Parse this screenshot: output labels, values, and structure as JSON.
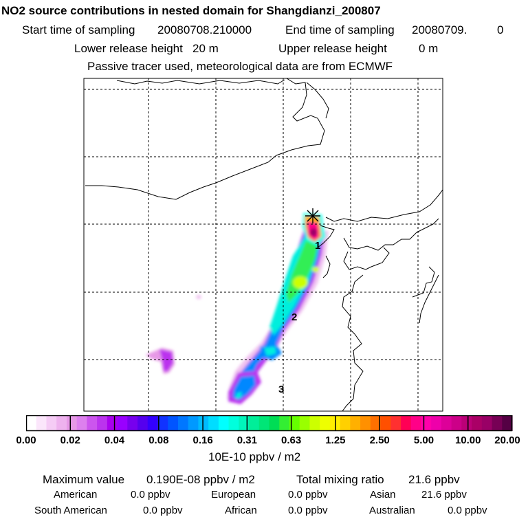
{
  "header": {
    "title": "NO2 source contributions in nested domain for Shangdianzi_200807",
    "start_label": "Start time of sampling",
    "start_value": "20080708.210000",
    "end_label": "End time of sampling",
    "end_value": "20080709.",
    "end_extra": "0",
    "lower_label": "Lower release height",
    "lower_value": "20 m",
    "upper_label": "Upper release height",
    "upper_value": "0 m",
    "note": "Passive tracer used, meteorological data are from ECMWF"
  },
  "map": {
    "region_labels": [
      "1",
      "2",
      "3"
    ],
    "receptor_marker": "star-marker"
  },
  "colorbar": {
    "ticks": [
      "0.00",
      "0.02",
      "0.04",
      "0.08",
      "0.16",
      "0.31",
      "0.63",
      "1.25",
      "2.50",
      "5.00",
      "10.00",
      "20.00"
    ],
    "unit": "10E-10 ppbv / m2",
    "colors": [
      "#ffffff",
      "#fbe6fb",
      "#f5ccf5",
      "#eeb2ee",
      "#e699e6",
      "#dd80ee",
      "#cc55ee",
      "#bb33ee",
      "#a900ee",
      "#9900ff",
      "#7700ee",
      "#5500ee",
      "#3300ff",
      "#1133ff",
      "#0055ff",
      "#0077ff",
      "#0099ff",
      "#00bbff",
      "#00ddff",
      "#00ffff",
      "#00ffdd",
      "#00f5bb",
      "#00ee99",
      "#00e677",
      "#00dd55",
      "#33ee33",
      "#66ff00",
      "#99ff00",
      "#ccff00",
      "#eeff00",
      "#ffee00",
      "#ffd000",
      "#ffb000",
      "#ff9000",
      "#ff7000",
      "#ff5000",
      "#ff3030",
      "#ff0055",
      "#ff0088",
      "#ff00aa",
      "#ee00aa",
      "#dd0099",
      "#cc0088",
      "#bb0077",
      "#aa0066",
      "#990066",
      "#770055",
      "#550044"
    ]
  },
  "stats": {
    "max_label": "Maximum value",
    "max_value": "0.190E-08 ppbv / m2",
    "total_label": "Total mixing ratio",
    "total_value": "21.6 ppbv",
    "american_label": "American",
    "american_value": "0.0 ppbv",
    "european_label": "European",
    "european_value": "0.0 ppbv",
    "asian_label": "Asian",
    "asian_value": "21.6 ppbv",
    "south_american_label": "South American",
    "south_american_value": "0.0 ppbv",
    "african_label": "African",
    "african_value": "0.0 ppbv",
    "australian_label": "Australian",
    "australian_value": "0.0 ppbv"
  }
}
